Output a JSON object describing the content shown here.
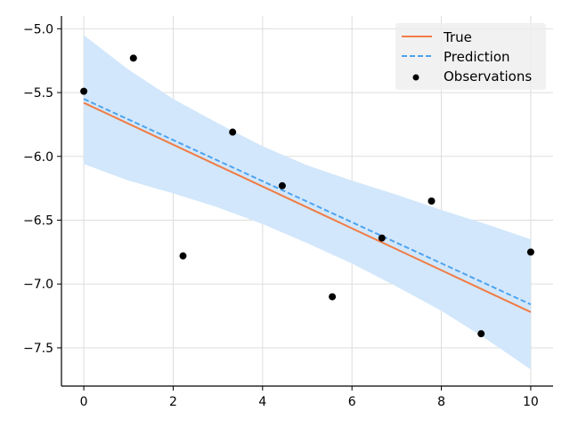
{
  "chart_data": {
    "type": "line",
    "title": "",
    "xlabel": "",
    "ylabel": "",
    "xlim": [
      -0.5,
      10.5
    ],
    "ylim": [
      -7.8,
      -4.9
    ],
    "xticks": [
      0,
      2,
      4,
      6,
      8,
      10
    ],
    "xtick_labels": [
      "0",
      "2",
      "4",
      "6",
      "8",
      "10"
    ],
    "yticks": [
      -5.0,
      -5.5,
      -6.0,
      -6.5,
      -7.0,
      -7.5
    ],
    "ytick_labels": [
      "−5.0",
      "−5.5",
      "−6.0",
      "−6.5",
      "−7.0",
      "−7.5"
    ],
    "grid": true,
    "legend_position": "top-right",
    "series": [
      {
        "name": "True",
        "kind": "line",
        "color": "#f07c45",
        "x": [
          0,
          10
        ],
        "values": [
          -5.58,
          -7.22
        ]
      },
      {
        "name": "Prediction",
        "kind": "dashed-line",
        "color": "#4da3f0",
        "x": [
          0,
          10
        ],
        "values": [
          -5.55,
          -7.16
        ]
      },
      {
        "name": "Observations",
        "kind": "scatter",
        "color": "#000000",
        "x": [
          0,
          1.11,
          2.22,
          3.33,
          4.44,
          5.56,
          6.67,
          7.78,
          8.89,
          10
        ],
        "values": [
          -5.49,
          -5.23,
          -6.78,
          -5.81,
          -6.23,
          -7.1,
          -6.64,
          -6.35,
          -7.39,
          -6.75
        ]
      }
    ],
    "band": {
      "name": "Prediction interval",
      "color": "#d2e7fb",
      "x": [
        0,
        1,
        2,
        3,
        4,
        5,
        6,
        7,
        8,
        9,
        10
      ],
      "lower": [
        -6.06,
        -6.19,
        -6.29,
        -6.4,
        -6.53,
        -6.68,
        -6.84,
        -7.02,
        -7.21,
        -7.43,
        -7.67
      ],
      "upper": [
        -5.05,
        -5.32,
        -5.55,
        -5.74,
        -5.92,
        -6.07,
        -6.19,
        -6.3,
        -6.42,
        -6.53,
        -6.65
      ]
    },
    "legend": [
      "True",
      "Prediction",
      "Observations"
    ]
  }
}
